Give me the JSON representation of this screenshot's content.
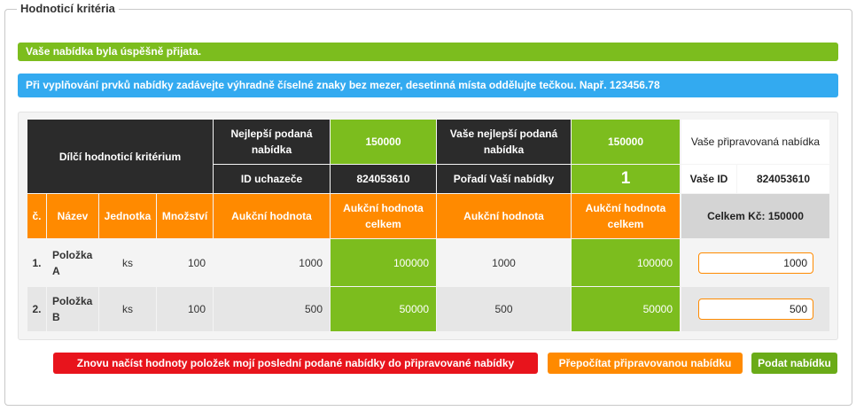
{
  "section": {
    "legend": "Hodnoticí kritéria"
  },
  "alerts": {
    "success": "Vaše nabídka byla úspěšně přijata.",
    "info": "Při vyplňování prvků nabídky zadávejte výhradně číselné znaky bez mezer, desetinná místa oddělujte tečkou. Např. 123456.78"
  },
  "header": {
    "criterion": "Dílčí hodnoticí kritérium",
    "best_bid_label": "Nejlepší podaná nabídka",
    "best_bid_value": "150000",
    "your_best_label": "Vaše nejlepší podaná nabídka",
    "your_best_value": "150000",
    "prepared_label": "Vaše připravovaná nabídka",
    "bidder_id_label": "ID uchazeče",
    "bidder_id_value": "824053610",
    "rank_label": "Pořadí Vaší nabídky",
    "rank_value": "1",
    "your_id_label": "Vaše ID",
    "your_id_value": "824053610"
  },
  "columns": {
    "no": "č.",
    "name": "Název",
    "unit": "Jednotka",
    "qty": "Množství",
    "auction_value": "Aukční hodnota",
    "auction_total": "Aukční hodnota celkem",
    "your_auction_value": "Aukční hodnota",
    "your_auction_total": "Aukční hodnota celkem",
    "total": "Celkem Kč: 150000"
  },
  "rows": [
    {
      "no": "1.",
      "name": "Položka A",
      "unit": "ks",
      "qty": "100",
      "best_value": "1000",
      "best_total": "100000",
      "your_value": "1000",
      "your_total": "100000",
      "input": "1000"
    },
    {
      "no": "2.",
      "name": "Položka B",
      "unit": "ks",
      "qty": "100",
      "best_value": "500",
      "best_total": "50000",
      "your_value": "500",
      "your_total": "50000",
      "input": "500"
    }
  ],
  "buttons": {
    "reload": "Znovu načíst hodnoty položek mojí poslední podané nabídky do připravované nabídky",
    "recalculate": "Přepočítat připravovanou nabídku",
    "submit": "Podat nabídku"
  }
}
